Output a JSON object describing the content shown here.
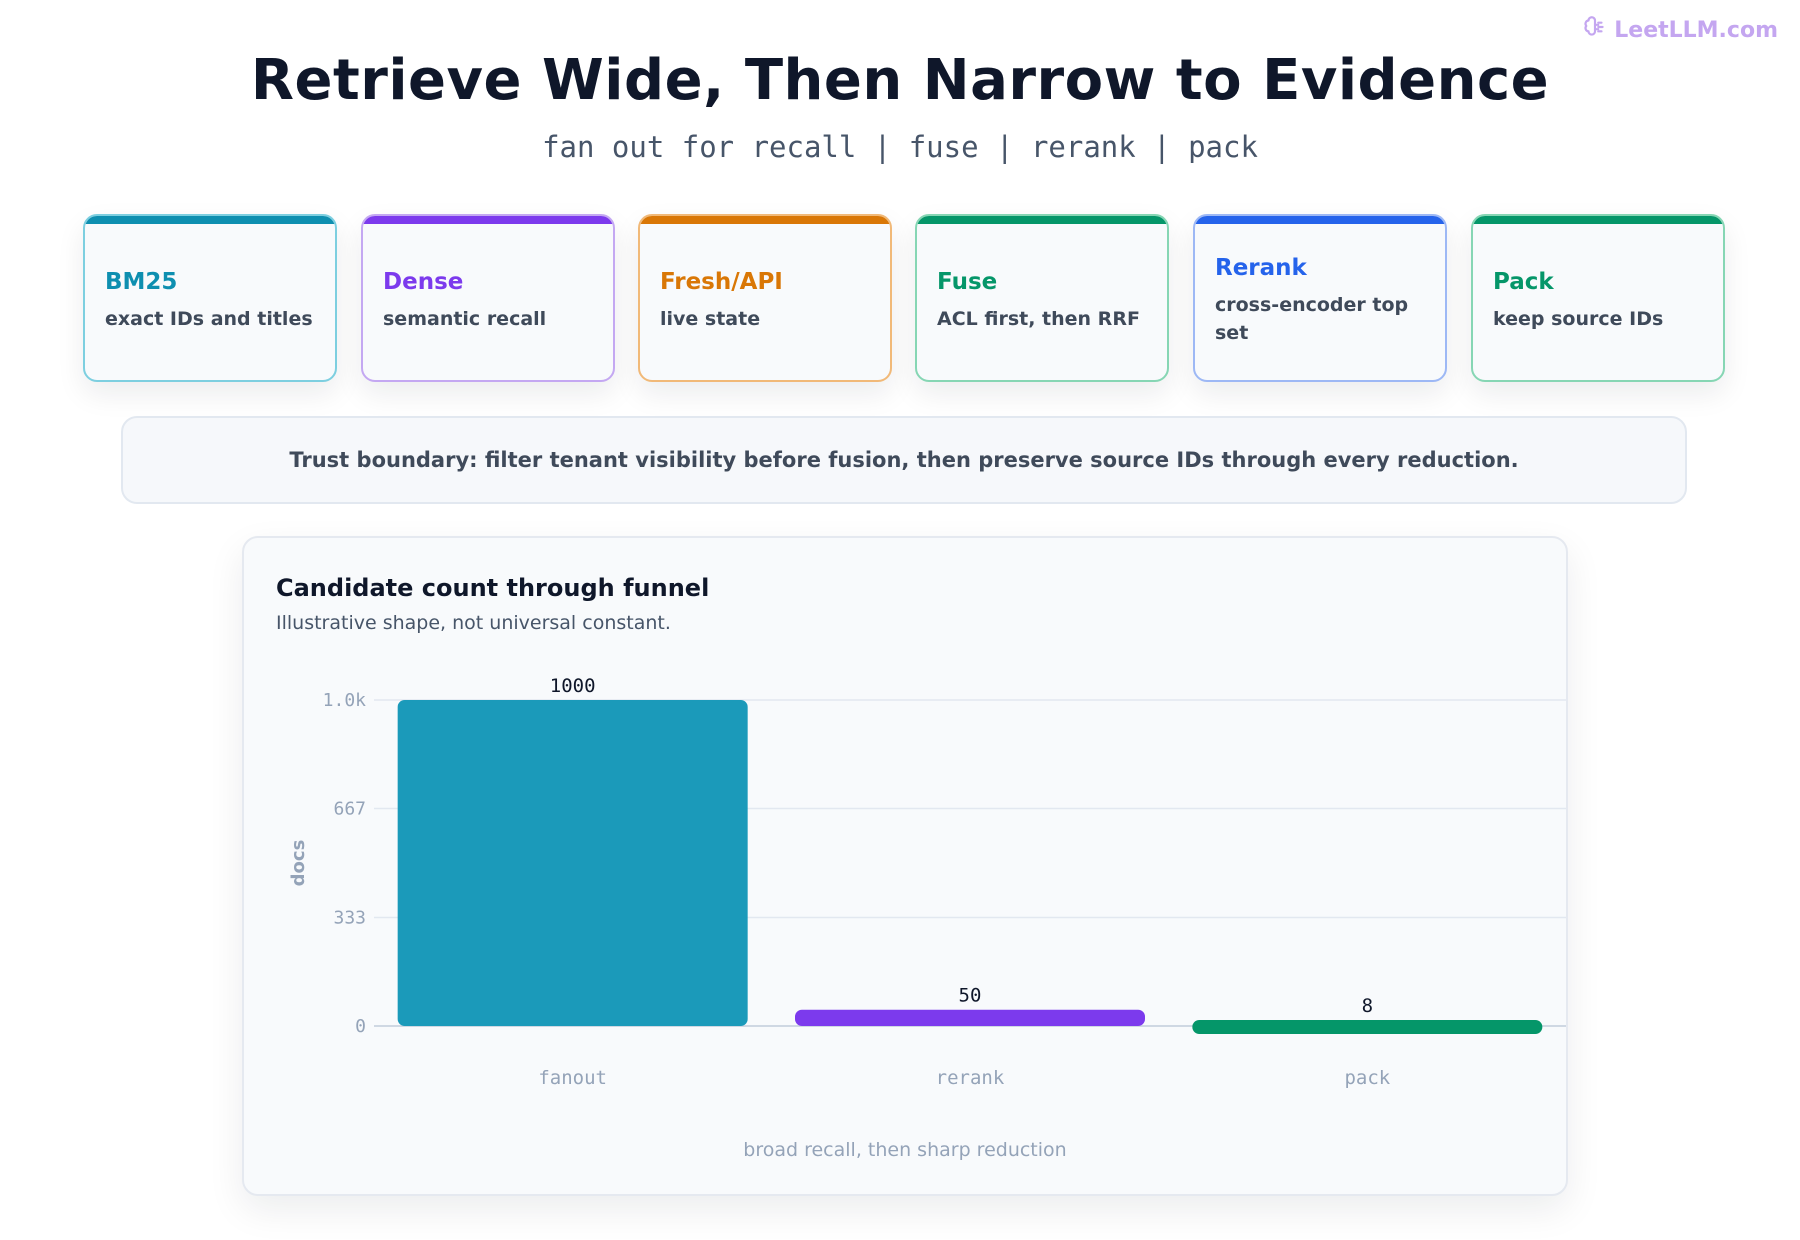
{
  "brand": {
    "name": "LeetLLM.com",
    "icon": "brain-icon",
    "color": "#c4a6f0"
  },
  "header": {
    "title": "Retrieve Wide, Then Narrow to Evidence",
    "subtitle": "fan out for recall | fuse | rerank | pack"
  },
  "stages": [
    {
      "name": "BM25",
      "desc": "exact IDs and titles",
      "color": "#0e8fb0",
      "border": "#7dcfe0"
    },
    {
      "name": "Dense",
      "desc": "semantic recall",
      "color": "#7c3aed",
      "border": "#c4a8f2"
    },
    {
      "name": "Fresh/API",
      "desc": "live state",
      "color": "#d97706",
      "border": "#f1b978"
    },
    {
      "name": "Fuse",
      "desc": "ACL first, then RRF",
      "color": "#059669",
      "border": "#86d6b4"
    },
    {
      "name": "Rerank",
      "desc": "cross-encoder top set",
      "color": "#2563eb",
      "border": "#9db8f5"
    },
    {
      "name": "Pack",
      "desc": "keep source IDs",
      "color": "#059669",
      "border": "#86d6b4"
    }
  ],
  "trust_boundary": "Trust boundary: filter tenant visibility before fusion, then preserve source IDs through every reduction.",
  "chart_data": {
    "type": "bar",
    "title": "Candidate count through funnel",
    "subtitle": "Illustrative shape, not universal constant.",
    "categories": [
      "fanout",
      "rerank",
      "pack"
    ],
    "values": [
      1000,
      50,
      8
    ],
    "colors": [
      "#1b9aba",
      "#7c3aed",
      "#059669"
    ],
    "ylabel": "docs",
    "xlabel": "broad recall, then sharp reduction",
    "ylim": [
      0,
      1000
    ],
    "yticks": [
      0,
      333,
      667,
      1000
    ],
    "ytick_labels": [
      "0",
      "333",
      "667",
      "1.0k"
    ],
    "grid": true
  }
}
